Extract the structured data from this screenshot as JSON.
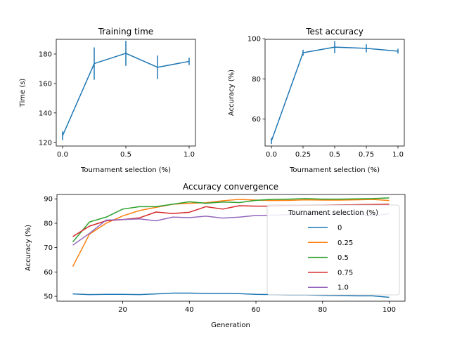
{
  "chart_data": [
    {
      "type": "line",
      "title": "Training time",
      "xlabel": "Tournament selection (%)",
      "ylabel": "Time (s)",
      "x": [
        0.0,
        0.25,
        0.5,
        0.75,
        1.0
      ],
      "y": [
        124.5,
        173.5,
        180.5,
        171.0,
        175.0
      ],
      "yerr": [
        3.0,
        11.0,
        8.5,
        8.0,
        2.5
      ],
      "xlim": [
        -0.05,
        1.05
      ],
      "ylim": [
        117.5,
        190.0
      ],
      "xticks": [
        0.0,
        0.5,
        1.0
      ],
      "xticklabels": [
        "0.0",
        "0.5",
        "1.0"
      ],
      "yticks": [
        120,
        140,
        160,
        180
      ],
      "yticklabels": [
        "120",
        "140",
        "160",
        "180"
      ],
      "color": "#1f77b4",
      "grid": false
    },
    {
      "type": "line",
      "title": "Test accuracy",
      "xlabel": "Tournament selection (%)",
      "ylabel": "Accuracy (%)",
      "x": [
        0.0,
        0.25,
        0.5,
        0.75,
        1.0
      ],
      "y": [
        49.0,
        93.0,
        95.8,
        95.2,
        93.8
      ],
      "yerr": [
        1.5,
        1.5,
        3.0,
        2.0,
        1.2
      ],
      "xlim": [
        -0.05,
        1.05
      ],
      "ylim": [
        46.5,
        99.7
      ],
      "xticks": [
        0.0,
        0.25,
        0.5,
        0.75,
        1.0
      ],
      "xticklabels": [
        "0.0",
        "0.25",
        "0.5",
        "0.75",
        "1.0"
      ],
      "yticks": [
        60,
        80,
        100
      ],
      "yticklabels": [
        "60",
        "80",
        "100"
      ],
      "color": "#1f77b4",
      "grid": false
    },
    {
      "type": "line",
      "title": "Accuracy convergence",
      "xlabel": "Generation",
      "ylabel": "Accuracy (%)",
      "x": [
        5,
        10,
        15,
        20,
        25,
        30,
        35,
        40,
        45,
        50,
        55,
        60,
        65,
        70,
        75,
        80,
        85,
        90,
        95,
        100
      ],
      "xlim": [
        0.25,
        104.75
      ],
      "ylim": [
        48.0,
        91.8
      ],
      "xticks": [
        20,
        40,
        60,
        80,
        100
      ],
      "xticklabels": [
        "20",
        "40",
        "60",
        "80",
        "100"
      ],
      "yticks": [
        50,
        60,
        70,
        80,
        90
      ],
      "yticklabels": [
        "50",
        "60",
        "70",
        "80",
        "90"
      ],
      "grid": false,
      "legend": {
        "title": "Tournament selection (%)",
        "placement": "right"
      },
      "series": [
        {
          "name": "0",
          "color": "#1f77b4",
          "values": [
            51.0,
            50.7,
            50.8,
            50.8,
            50.7,
            51.0,
            51.3,
            51.3,
            51.2,
            51.2,
            51.1,
            50.8,
            50.7,
            50.6,
            50.6,
            50.4,
            50.3,
            50.2,
            50.2,
            49.6
          ]
        },
        {
          "name": "0.25",
          "color": "#ff7f0e",
          "values": [
            62.2,
            75.5,
            80.0,
            83.0,
            85.2,
            86.5,
            87.8,
            88.2,
            88.4,
            89.2,
            89.8,
            89.5,
            89.3,
            89.4,
            89.6,
            89.5,
            89.5,
            89.6,
            89.8,
            89.3
          ]
        },
        {
          "name": "0.5",
          "color": "#2ca02c",
          "values": [
            72.3,
            80.5,
            82.5,
            85.8,
            86.8,
            86.8,
            87.8,
            88.8,
            88.2,
            88.7,
            88.5,
            89.4,
            89.8,
            89.9,
            90.1,
            89.9,
            89.9,
            90.0,
            90.1,
            90.4
          ]
        },
        {
          "name": "0.75",
          "color": "#d62728",
          "values": [
            74.5,
            78.8,
            81.0,
            81.5,
            82.2,
            84.6,
            84.0,
            84.5,
            86.8,
            85.8,
            87.2,
            87.0,
            87.0,
            87.2,
            87.3,
            87.4,
            87.5,
            87.6,
            87.7,
            87.8
          ]
        },
        {
          "name": "1.0",
          "color": "#9467bd",
          "values": [
            71.0,
            75.8,
            81.3,
            81.5,
            81.8,
            81.0,
            82.5,
            82.3,
            82.9,
            82.1,
            82.5,
            83.2,
            83.3,
            83.5,
            83.6,
            83.7,
            83.7,
            83.8,
            83.0,
            83.9
          ]
        }
      ]
    }
  ]
}
